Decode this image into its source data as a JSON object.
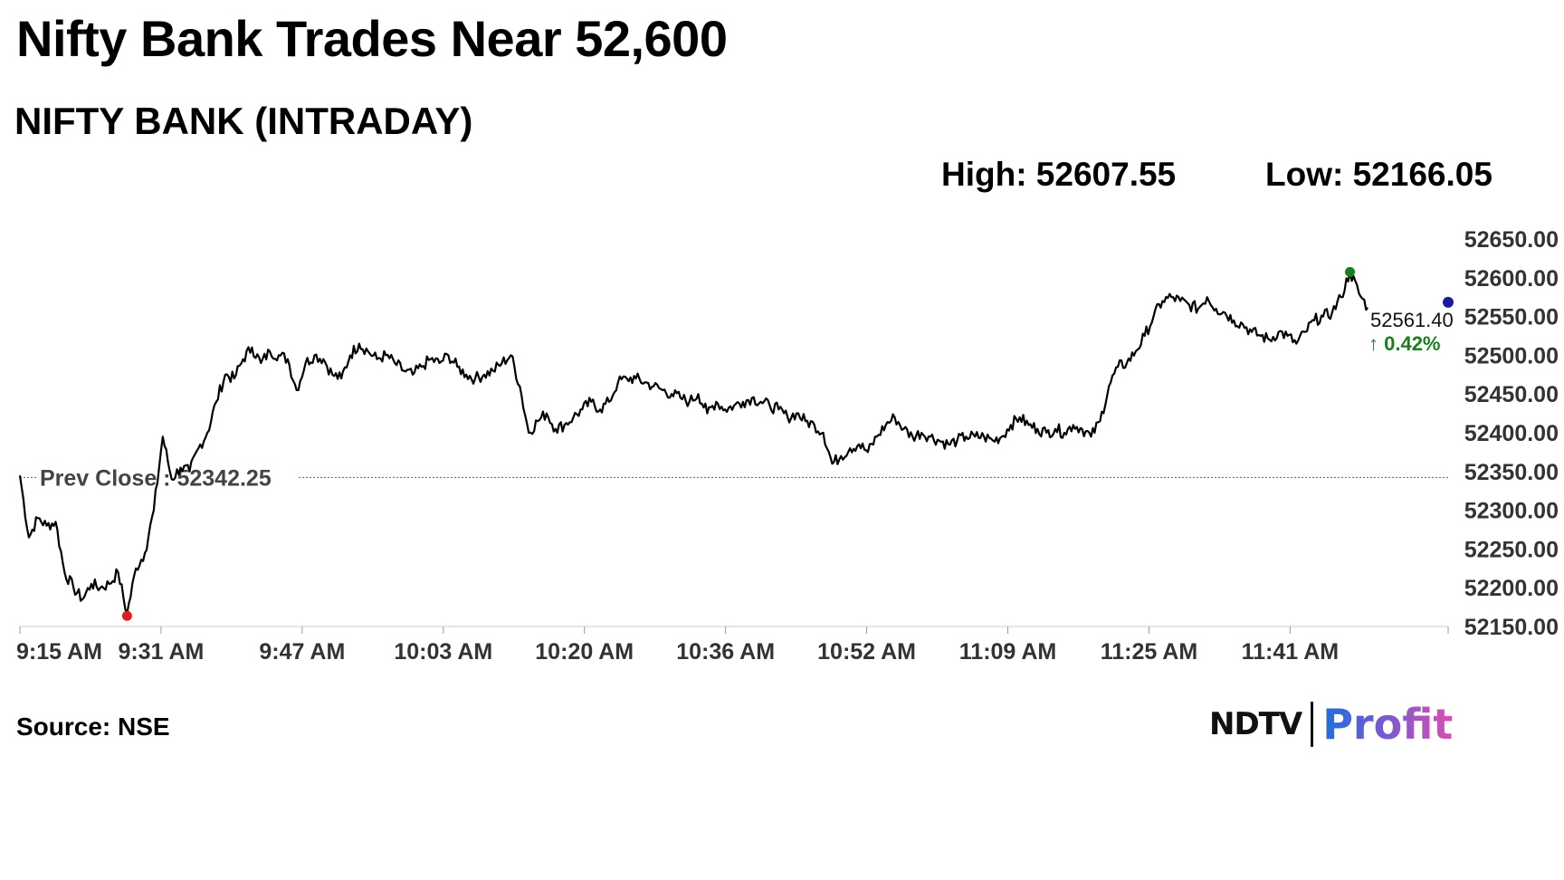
{
  "headline": "Nifty Bank Trades Near 52,600",
  "subtitle": "NIFTY BANK (INTRADAY)",
  "high_label": "High: 52607.55",
  "low_label": "Low: 52166.05",
  "source": "Source: NSE",
  "logo": {
    "left": "NDTV",
    "right": "Profit"
  },
  "colors": {
    "line": "#000000",
    "prev_close": "#cc3333",
    "high_marker": "#1a7f1a",
    "low_marker": "#e21b1b",
    "last_marker": "#1a1aa0",
    "change_up": "#1a7f1a",
    "axis_text": "#333333"
  },
  "chart_data": {
    "type": "line",
    "title": "NIFTY BANK (INTRADAY)",
    "xlabel": "",
    "ylabel": "",
    "ylim": [
      52150,
      52650
    ],
    "y_ticks": [
      "52650.00",
      "52600.00",
      "52550.00",
      "52500.00",
      "52450.00",
      "52400.00",
      "52350.00",
      "52300.00",
      "52250.00",
      "52200.00",
      "52150.00"
    ],
    "x_tick_labels": [
      "9:15 AM",
      "9:31 AM",
      "9:47 AM",
      "10:03 AM",
      "10:20 AM",
      "10:36 AM",
      "10:52 AM",
      "11:09 AM",
      "11:25 AM",
      "11:41 AM"
    ],
    "x_range_minutes": [
      555,
      715
    ],
    "prev_close": {
      "label": "Prev Close : 52342.25",
      "value": 52342.25
    },
    "high": {
      "time": "11:44 AM",
      "value": 52607.55
    },
    "low": {
      "time": "9:27 AM",
      "value": 52166.05
    },
    "last": {
      "value_label": "52561.40",
      "change_label": "↑ 0.42%",
      "value": 52561.4
    },
    "grid": false,
    "series": [
      {
        "points": [
          [
            "9:15",
            52345
          ],
          [
            "9:16",
            52265
          ],
          [
            "9:17",
            52290
          ],
          [
            "9:18",
            52280
          ],
          [
            "9:19",
            52285
          ],
          [
            "9:20",
            52220
          ],
          [
            "9:21",
            52200
          ],
          [
            "9:22",
            52185
          ],
          [
            "9:23",
            52205
          ],
          [
            "9:24",
            52200
          ],
          [
            "9:25",
            52205
          ],
          [
            "9:26",
            52220
          ],
          [
            "9:27",
            52166
          ],
          [
            "9:28",
            52225
          ],
          [
            "9:29",
            52245
          ],
          [
            "9:30",
            52300
          ],
          [
            "9:31",
            52395
          ],
          [
            "9:32",
            52340
          ],
          [
            "9:33",
            52355
          ],
          [
            "9:34",
            52350
          ],
          [
            "9:35",
            52380
          ],
          [
            "9:36",
            52400
          ],
          [
            "9:37",
            52440
          ],
          [
            "9:38",
            52475
          ],
          [
            "9:39",
            52470
          ],
          [
            "9:40",
            52495
          ],
          [
            "9:41",
            52510
          ],
          [
            "9:42",
            52490
          ],
          [
            "9:43",
            52505
          ],
          [
            "9:44",
            52500
          ],
          [
            "9:45",
            52495
          ],
          [
            "9:46",
            52455
          ],
          [
            "9:47",
            52490
          ],
          [
            "9:48",
            52500
          ],
          [
            "9:49",
            52495
          ],
          [
            "9:50",
            52475
          ],
          [
            "9:51",
            52470
          ],
          [
            "9:52",
            52500
          ],
          [
            "9:53",
            52515
          ],
          [
            "9:54",
            52505
          ],
          [
            "9:55",
            52495
          ],
          [
            "9:56",
            52500
          ],
          [
            "9:57",
            52490
          ],
          [
            "9:58",
            52480
          ],
          [
            "9:59",
            52475
          ],
          [
            "10:00",
            52485
          ],
          [
            "10:01",
            52495
          ],
          [
            "10:02",
            52490
          ],
          [
            "10:03",
            52500
          ],
          [
            "10:04",
            52485
          ],
          [
            "10:05",
            52475
          ],
          [
            "10:06",
            52470
          ],
          [
            "10:07",
            52475
          ],
          [
            "10:08",
            52480
          ],
          [
            "10:09",
            52490
          ],
          [
            "10:10",
            52500
          ],
          [
            "10:11",
            52460
          ],
          [
            "10:12",
            52400
          ],
          [
            "10:13",
            52415
          ],
          [
            "10:14",
            52425
          ],
          [
            "10:15",
            52405
          ],
          [
            "10:16",
            52410
          ],
          [
            "10:17",
            52420
          ],
          [
            "10:18",
            52430
          ],
          [
            "10:19",
            52440
          ],
          [
            "10:20",
            52430
          ],
          [
            "10:21",
            52440
          ],
          [
            "10:22",
            52465
          ],
          [
            "10:23",
            52470
          ],
          [
            "10:24",
            52470
          ],
          [
            "10:25",
            52465
          ],
          [
            "10:26",
            52460
          ],
          [
            "10:27",
            52455
          ],
          [
            "10:28",
            52450
          ],
          [
            "10:29",
            52445
          ],
          [
            "10:30",
            52440
          ],
          [
            "10:31",
            52450
          ],
          [
            "10:32",
            52425
          ],
          [
            "10:33",
            52440
          ],
          [
            "10:34",
            52430
          ],
          [
            "10:35",
            52435
          ],
          [
            "10:36",
            52440
          ],
          [
            "10:37",
            52445
          ],
          [
            "10:38",
            52440
          ],
          [
            "10:39",
            52435
          ],
          [
            "10:40",
            52430
          ],
          [
            "10:41",
            52420
          ],
          [
            "10:42",
            52425
          ],
          [
            "10:43",
            52415
          ],
          [
            "10:44",
            52410
          ],
          [
            "10:45",
            52400
          ],
          [
            "10:46",
            52360
          ],
          [
            "10:47",
            52370
          ],
          [
            "10:48",
            52380
          ],
          [
            "10:49",
            52385
          ],
          [
            "10:50",
            52375
          ],
          [
            "10:51",
            52395
          ],
          [
            "10:52",
            52410
          ],
          [
            "10:53",
            52420
          ],
          [
            "10:54",
            52405
          ],
          [
            "10:55",
            52395
          ],
          [
            "10:56",
            52400
          ],
          [
            "10:57",
            52395
          ],
          [
            "10:58",
            52390
          ],
          [
            "10:59",
            52385
          ],
          [
            "11:00",
            52390
          ],
          [
            "11:01",
            52395
          ],
          [
            "11:02",
            52395
          ],
          [
            "11:03",
            52395
          ],
          [
            "11:04",
            52390
          ],
          [
            "11:05",
            52395
          ],
          [
            "11:06",
            52410
          ],
          [
            "11:07",
            52420
          ],
          [
            "11:08",
            52410
          ],
          [
            "11:09",
            52405
          ],
          [
            "11:10",
            52400
          ],
          [
            "11:11",
            52405
          ],
          [
            "11:12",
            52400
          ],
          [
            "11:13",
            52410
          ],
          [
            "11:14",
            52405
          ],
          [
            "11:15",
            52395
          ],
          [
            "11:16",
            52415
          ],
          [
            "11:17",
            52460
          ],
          [
            "11:18",
            52485
          ],
          [
            "11:19",
            52490
          ],
          [
            "11:20",
            52505
          ],
          [
            "11:21",
            52525
          ],
          [
            "11:22",
            52550
          ],
          [
            "11:23",
            52570
          ],
          [
            "11:24",
            52575
          ],
          [
            "11:25",
            52570
          ],
          [
            "11:26",
            52565
          ],
          [
            "11:27",
            52560
          ],
          [
            "11:28",
            52575
          ],
          [
            "11:29",
            52560
          ],
          [
            "11:30",
            52555
          ],
          [
            "11:31",
            52545
          ],
          [
            "11:32",
            52540
          ],
          [
            "11:33",
            52530
          ],
          [
            "11:34",
            52525
          ],
          [
            "11:35",
            52520
          ],
          [
            "11:36",
            52530
          ],
          [
            "11:37",
            52525
          ],
          [
            "11:38",
            52515
          ],
          [
            "11:39",
            52530
          ],
          [
            "11:40",
            52545
          ],
          [
            "11:41",
            52550
          ],
          [
            "11:42",
            52555
          ],
          [
            "11:43",
            52575
          ],
          [
            "11:44",
            52607.55
          ],
          [
            "11:45",
            52580
          ],
          [
            "11:46",
            52561.4
          ]
        ]
      }
    ]
  }
}
